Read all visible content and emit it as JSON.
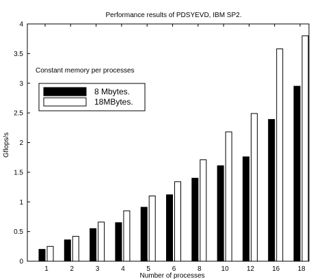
{
  "chart_data": {
    "type": "bar",
    "title": "Performance results of PDSYEVD, IBM SP2.",
    "xlabel": "Number of processes",
    "ylabel": "Gflops/s",
    "ylim": [
      0,
      4
    ],
    "yticks": [
      "0",
      "0.5",
      "1",
      "1.5",
      "2",
      "2.5",
      "3",
      "3.5",
      "4"
    ],
    "categories": [
      "1",
      "2",
      "3",
      "4",
      "5",
      "6",
      "8",
      "10",
      "12",
      "16",
      "18"
    ],
    "series": [
      {
        "name": "8 Mbytes.",
        "color": "#000000",
        "values": [
          0.2,
          0.36,
          0.55,
          0.65,
          0.91,
          1.12,
          1.4,
          1.61,
          1.76,
          2.39,
          2.95
        ]
      },
      {
        "name": "18MBytes.",
        "color": "#ffffff",
        "values": [
          0.25,
          0.42,
          0.66,
          0.85,
          1.1,
          1.34,
          1.71,
          2.18,
          2.49,
          3.58,
          3.8
        ]
      }
    ],
    "legend_title": "Constant memory per processes",
    "legend_position": "upper-left",
    "grid": false
  }
}
